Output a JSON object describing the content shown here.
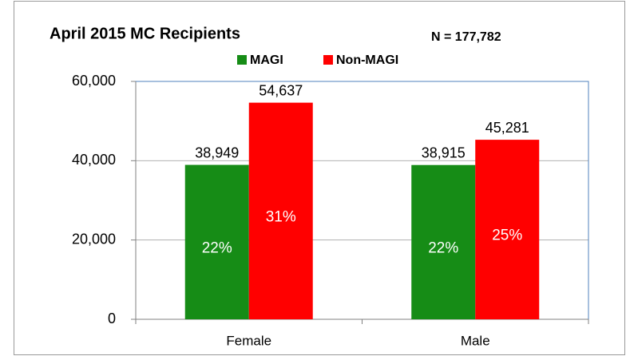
{
  "chart_data": {
    "type": "bar",
    "title": "April 2015 MC Recipients",
    "annotation": "N = 177,782",
    "categories": [
      "Female",
      "Male"
    ],
    "series": [
      {
        "name": "MAGI",
        "color": "#168c16",
        "values": [
          38949,
          38915
        ],
        "value_labels": [
          "38,949",
          "38,915"
        ],
        "share_labels": [
          "22%",
          "22%"
        ]
      },
      {
        "name": "Non-MAGI",
        "color": "#ff0000",
        "values": [
          54637,
          45281
        ],
        "value_labels": [
          "54,637",
          "45,281"
        ],
        "share_labels": [
          "31%",
          "25%"
        ]
      }
    ],
    "ylim": [
      0,
      60000
    ],
    "yticks": [
      0,
      {
        "value": 20000,
        "label": "20,000"
      },
      {
        "value": 40000,
        "label": "40,000"
      },
      {
        "value": 60000,
        "label": "60,000"
      }
    ],
    "grid": true,
    "legend": "top"
  }
}
